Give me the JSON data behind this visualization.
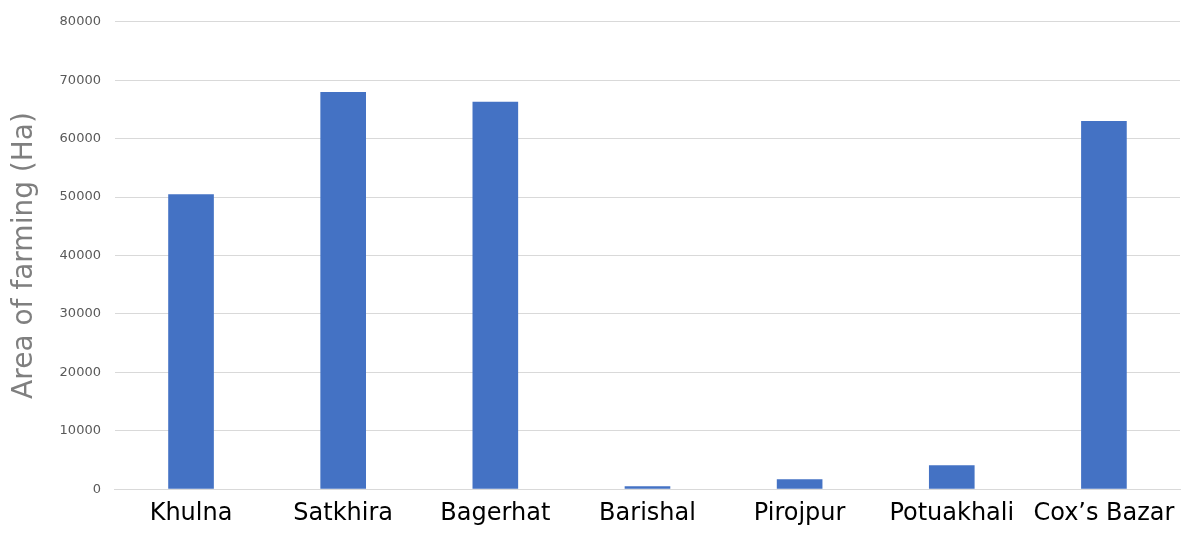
{
  "chart_data": {
    "type": "bar",
    "ylabel": "Area of farming (Ha)",
    "categories": [
      "Khulna",
      "Satkhira",
      "Bagerhat",
      "Barishal",
      "Pirojpur",
      "Potuakhali",
      "Cox’s Bazar"
    ],
    "values": [
      50500,
      68000,
      66300,
      500,
      1700,
      4100,
      63000
    ],
    "color": "#4472c4",
    "ylim": [
      0,
      80000
    ],
    "yticks": [
      0,
      10000,
      20000,
      30000,
      40000,
      50000,
      60000,
      70000,
      80000
    ],
    "grid": "y",
    "legend": false
  }
}
